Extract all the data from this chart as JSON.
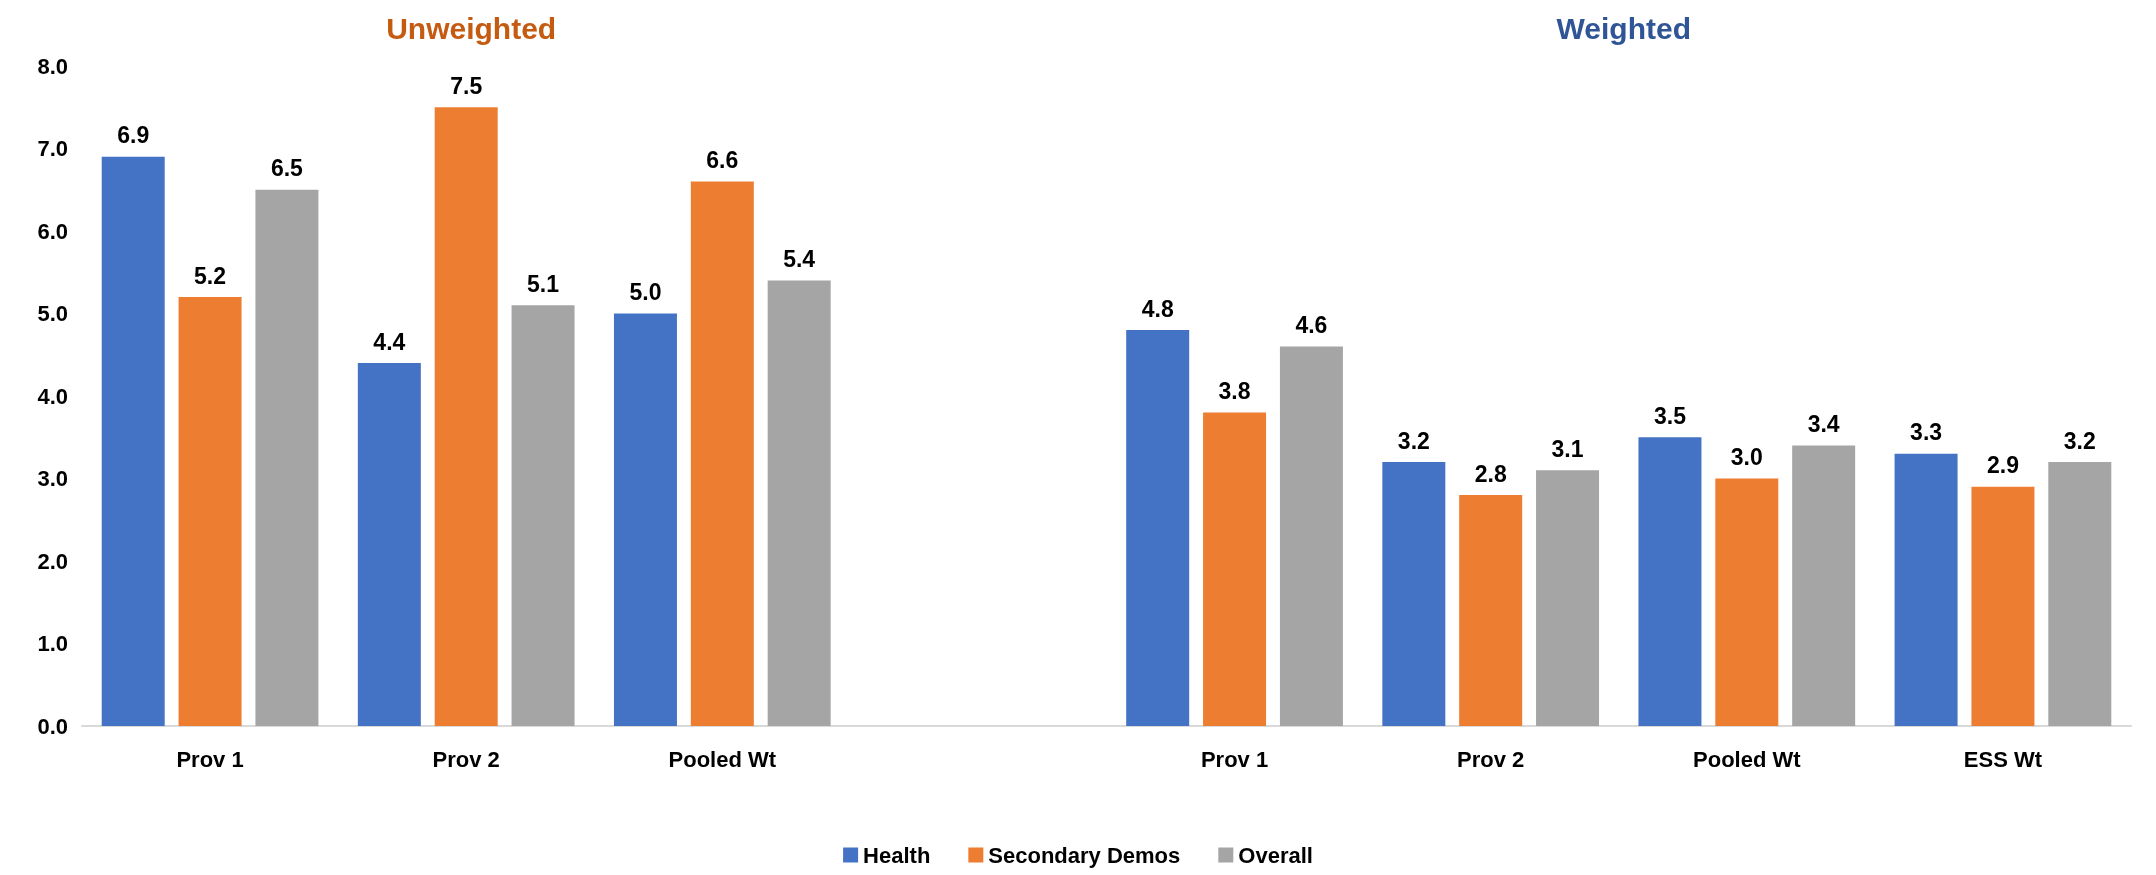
{
  "chart_data": {
    "type": "bar",
    "annotations": [
      "Unweighted",
      "Weighted"
    ],
    "categories": [
      "Prov 1",
      "Prov 2",
      "Pooled Wt",
      null,
      "Prov 1",
      "Prov 2",
      "Pooled Wt",
      "ESS Wt"
    ],
    "series": [
      {
        "name": "Health",
        "color": "#4472c4",
        "values": [
          6.9,
          4.4,
          5.0,
          null,
          4.8,
          3.2,
          3.5,
          3.3
        ],
        "value_labels": [
          "6.9",
          "4.4",
          "5.0",
          null,
          "4.8",
          "3.2",
          "3.5",
          "3.3"
        ]
      },
      {
        "name": "Secondary Demos",
        "color": "#ed7d31",
        "values": [
          5.2,
          7.5,
          6.6,
          null,
          3.8,
          2.8,
          3.0,
          2.9
        ],
        "value_labels": [
          "5.2",
          "7.5",
          "6.6",
          null,
          "3.8",
          "2.8",
          "3.0",
          "2.9"
        ]
      },
      {
        "name": "Overall",
        "color": "#a5a5a5",
        "values": [
          6.5,
          5.1,
          5.4,
          null,
          4.6,
          3.1,
          3.4,
          3.2
        ],
        "value_labels": [
          "6.5",
          "5.1",
          "5.4",
          null,
          "4.6",
          "3.1",
          "3.4",
          "3.2"
        ]
      }
    ],
    "ylim": [
      0,
      8
    ],
    "yticks": [
      {
        "value": 0,
        "label": "0.0"
      },
      {
        "value": 1,
        "label": "1.0"
      },
      {
        "value": 2,
        "label": "2.0"
      },
      {
        "value": 3,
        "label": "3.0"
      },
      {
        "value": 4,
        "label": "4.0"
      },
      {
        "value": 5,
        "label": "5.0"
      },
      {
        "value": 6,
        "label": "6.0"
      },
      {
        "value": 7,
        "label": "7.0"
      },
      {
        "value": 8,
        "label": "8.0"
      }
    ],
    "grid": false,
    "legend": "bottom"
  }
}
